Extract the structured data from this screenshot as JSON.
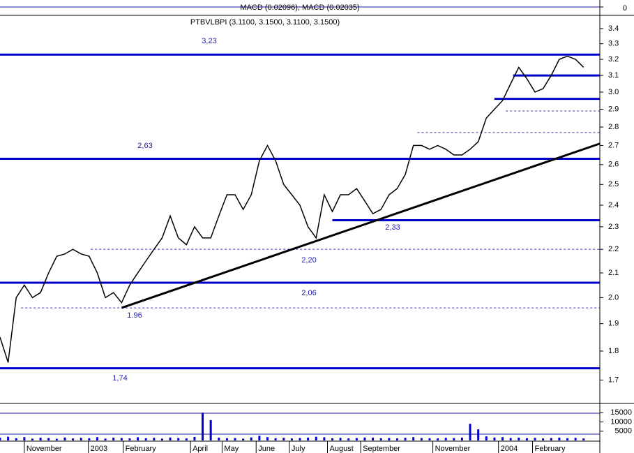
{
  "chart_data": {
    "type": "line",
    "title": "PTBVLBPI (3.1100, 3.1500, 3.1100, 3.1500)",
    "macd_label": "MACD (0.02096), MACD (0.02035)",
    "macd_yticks": [
      0
    ],
    "log_scale": true,
    "color": "#000000",
    "x": [
      0,
      1,
      2,
      3,
      4,
      5,
      6,
      7,
      8,
      9,
      10,
      11,
      12,
      13,
      14,
      15,
      16,
      17,
      18,
      19,
      20,
      21,
      22,
      23,
      24,
      25,
      26,
      27,
      28,
      29,
      30,
      31,
      32,
      33,
      34,
      35,
      36,
      37,
      38,
      39,
      40,
      41,
      42,
      43,
      44,
      45,
      46,
      47,
      48,
      49,
      50,
      51,
      52,
      53,
      54,
      55,
      56,
      57,
      58,
      59,
      60,
      61,
      62,
      63,
      64,
      65,
      66,
      67,
      68,
      69,
      70,
      71,
      72
    ],
    "values": [
      1.85,
      1.76,
      2.0,
      2.05,
      2.0,
      2.02,
      2.1,
      2.17,
      2.18,
      2.2,
      2.18,
      2.17,
      2.1,
      2.0,
      2.02,
      1.98,
      2.05,
      2.1,
      2.15,
      2.2,
      2.25,
      2.35,
      2.25,
      2.22,
      2.3,
      2.25,
      2.25,
      2.35,
      2.45,
      2.45,
      2.38,
      2.45,
      2.62,
      2.7,
      2.62,
      2.5,
      2.45,
      2.4,
      2.3,
      2.25,
      2.45,
      2.37,
      2.45,
      2.45,
      2.48,
      2.42,
      2.36,
      2.38,
      2.45,
      2.48,
      2.55,
      2.7,
      2.7,
      2.68,
      2.7,
      2.68,
      2.65,
      2.65,
      2.68,
      2.72,
      2.85,
      2.9,
      2.95,
      3.05,
      3.15,
      3.08,
      3.0,
      3.02,
      3.1,
      3.2,
      3.22,
      3.2,
      3.15
    ],
    "xlim": [
      0,
      74
    ],
    "xticks": [
      {
        "value": 3,
        "label": "November"
      },
      {
        "value": 10.9,
        "label": "2003"
      },
      {
        "value": 15.2,
        "label": "February"
      },
      {
        "value": 23.5,
        "label": "April"
      },
      {
        "value": 27.4,
        "label": "May"
      },
      {
        "value": 31.6,
        "label": "June"
      },
      {
        "value": 35.7,
        "label": "July"
      },
      {
        "value": 40.4,
        "label": "August"
      },
      {
        "value": 44.5,
        "label": "September"
      },
      {
        "value": 53.4,
        "label": "November"
      },
      {
        "value": 61.5,
        "label": "2004"
      },
      {
        "value": 65.7,
        "label": "February"
      }
    ],
    "ylim": [
      1.63,
      3.49
    ],
    "yticks": [
      1.7,
      1.8,
      1.9,
      {
        "value": 2,
        "label": "2.0"
      },
      2.1,
      2.2,
      2.3,
      2.4,
      2.5,
      2.6,
      2.7,
      2.8,
      2.9,
      {
        "value": 3,
        "label": "3.0"
      },
      3.1,
      3.2,
      3.3,
      3.4
    ],
    "levels": [
      {
        "value": 3.23,
        "from": 0,
        "label": "3,23"
      },
      {
        "value": 3.1,
        "from": 63.3
      },
      {
        "value": 2.96,
        "from": 61
      },
      {
        "value": 2.63,
        "from": 0,
        "label": "2,63"
      },
      {
        "value": 2.33,
        "from": 41,
        "label": "2,33"
      },
      {
        "value": 2.06,
        "from": 0,
        "label": "2,06"
      },
      {
        "value": 1.74,
        "from": 0,
        "label": "1,74"
      }
    ],
    "dotted_levels": [
      {
        "value": 2.89,
        "from": 62.4
      },
      {
        "value": 2.77,
        "from": 51.5
      },
      {
        "value": 2.2,
        "from": 11.2,
        "label": "2,20"
      },
      {
        "value": 1.96,
        "from": 2.6,
        "label": "1.96"
      }
    ],
    "trendline": {
      "x": [
        15,
        74
      ],
      "values": [
        1.96,
        2.71
      ]
    },
    "volume": {
      "color": "#0000cc",
      "values": [
        1500,
        2000,
        1200,
        1800,
        1000,
        1500,
        1300,
        900,
        1600,
        1100,
        1400,
        1200,
        1800,
        1000,
        1500,
        1300,
        1100,
        1700,
        1200,
        1400,
        1000,
        1600,
        1300,
        1100,
        1900,
        15000,
        11000,
        1500,
        1200,
        1300,
        1000,
        1600,
        2500,
        1800,
        1200,
        1400,
        1100,
        1300,
        1500,
        2000,
        1700,
        1200,
        1400,
        1100,
        1300,
        1600,
        1500,
        1200,
        1300,
        1100,
        1400,
        1800,
        1300,
        1200,
        1100,
        1400,
        1300,
        1500,
        9000,
        6000,
        2200,
        1600,
        1800,
        1300,
        1500,
        1200,
        1400,
        1100,
        1300,
        1500,
        1200,
        1400,
        1100
      ],
      "ylim": [
        0,
        20000
      ],
      "yticks": [
        15000,
        10000,
        5000
      ]
    }
  }
}
